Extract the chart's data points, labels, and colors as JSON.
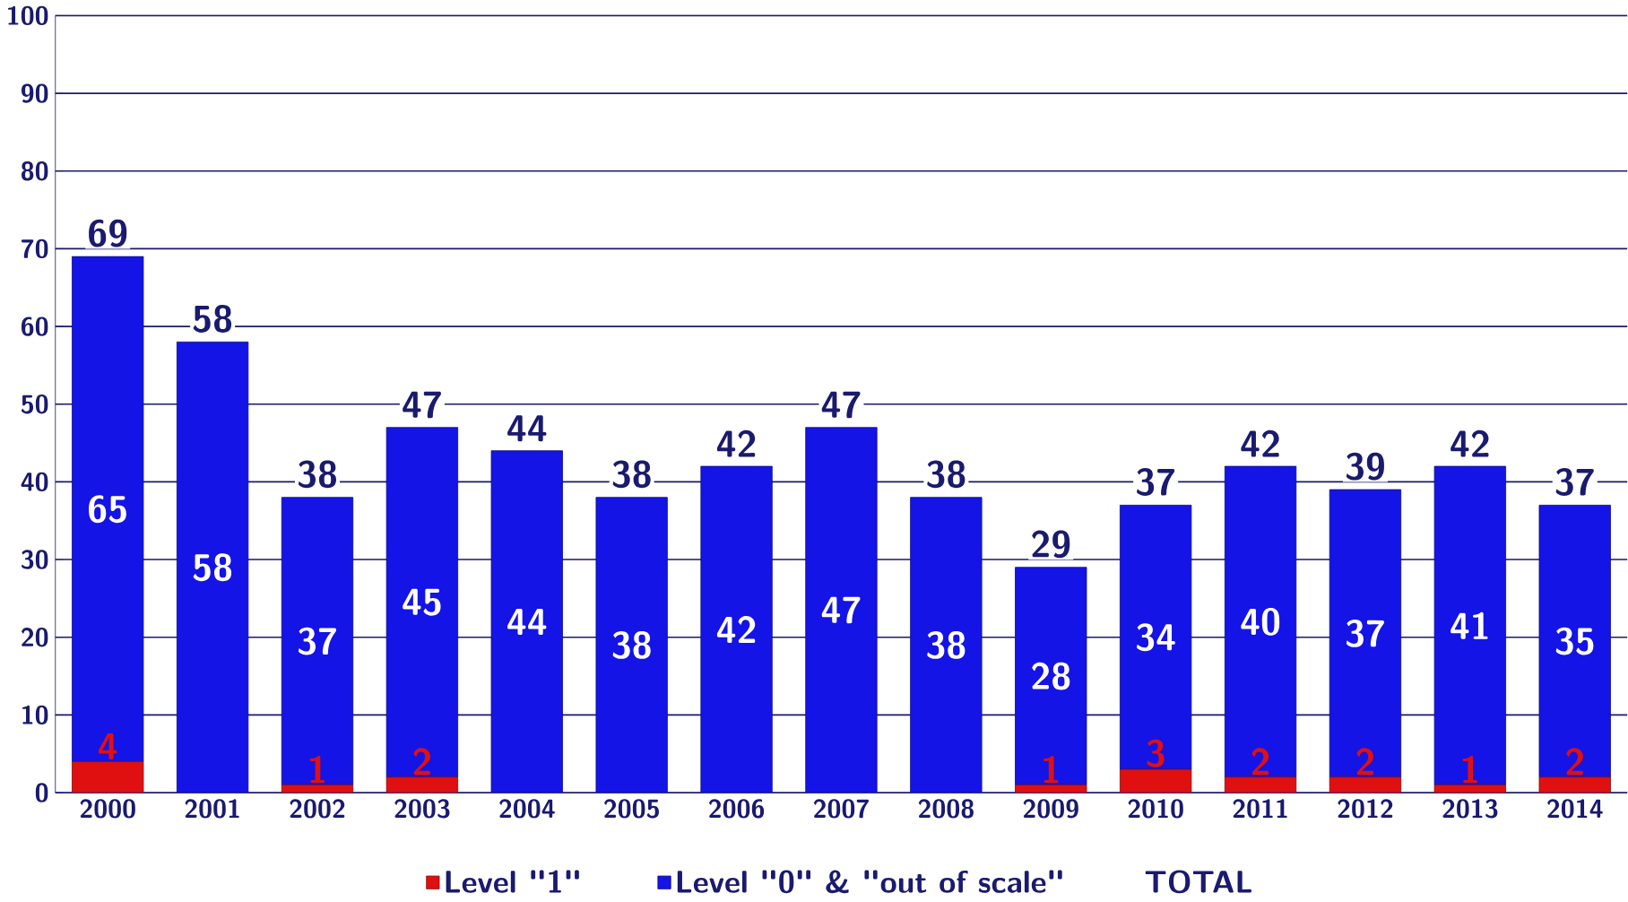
{
  "chart_data": {
    "type": "bar",
    "stacked": true,
    "categories": [
      "2000",
      "2001",
      "2002",
      "2003",
      "2004",
      "2005",
      "2006",
      "2007",
      "2008",
      "2009",
      "2010",
      "2011",
      "2012",
      "2013",
      "2014"
    ],
    "series": [
      {
        "name": "Level \"1\"",
        "color": "#e01010",
        "values": [
          4,
          0,
          1,
          2,
          0,
          0,
          0,
          0,
          0,
          1,
          3,
          2,
          2,
          1,
          2
        ],
        "value_labels": [
          "4",
          null,
          "1",
          "2",
          null,
          null,
          null,
          null,
          null,
          "1",
          "3",
          "2",
          "2",
          "1",
          "2"
        ]
      },
      {
        "name": "Level \"0\" & \"out of scale\"",
        "color": "#1414e6",
        "values": [
          65,
          58,
          37,
          45,
          44,
          38,
          42,
          47,
          38,
          28,
          34,
          40,
          37,
          41,
          35
        ],
        "value_labels": [
          "65",
          "58",
          "37",
          "45",
          "44",
          "38",
          "42",
          "47",
          "38",
          "28",
          "34",
          "40",
          "37",
          "41",
          "35"
        ]
      }
    ],
    "totals": [
      "69",
      "58",
      "38",
      "47",
      "44",
      "38",
      "42",
      "47",
      "38",
      "29",
      "37",
      "42",
      "39",
      "42",
      "37"
    ],
    "annotations": [
      "TOTAL"
    ],
    "ylim": [
      0,
      100
    ],
    "yticks": [
      0,
      10,
      20,
      30,
      40,
      50,
      60,
      70,
      80,
      90,
      100
    ],
    "grid": "y",
    "legend": "bottom"
  }
}
